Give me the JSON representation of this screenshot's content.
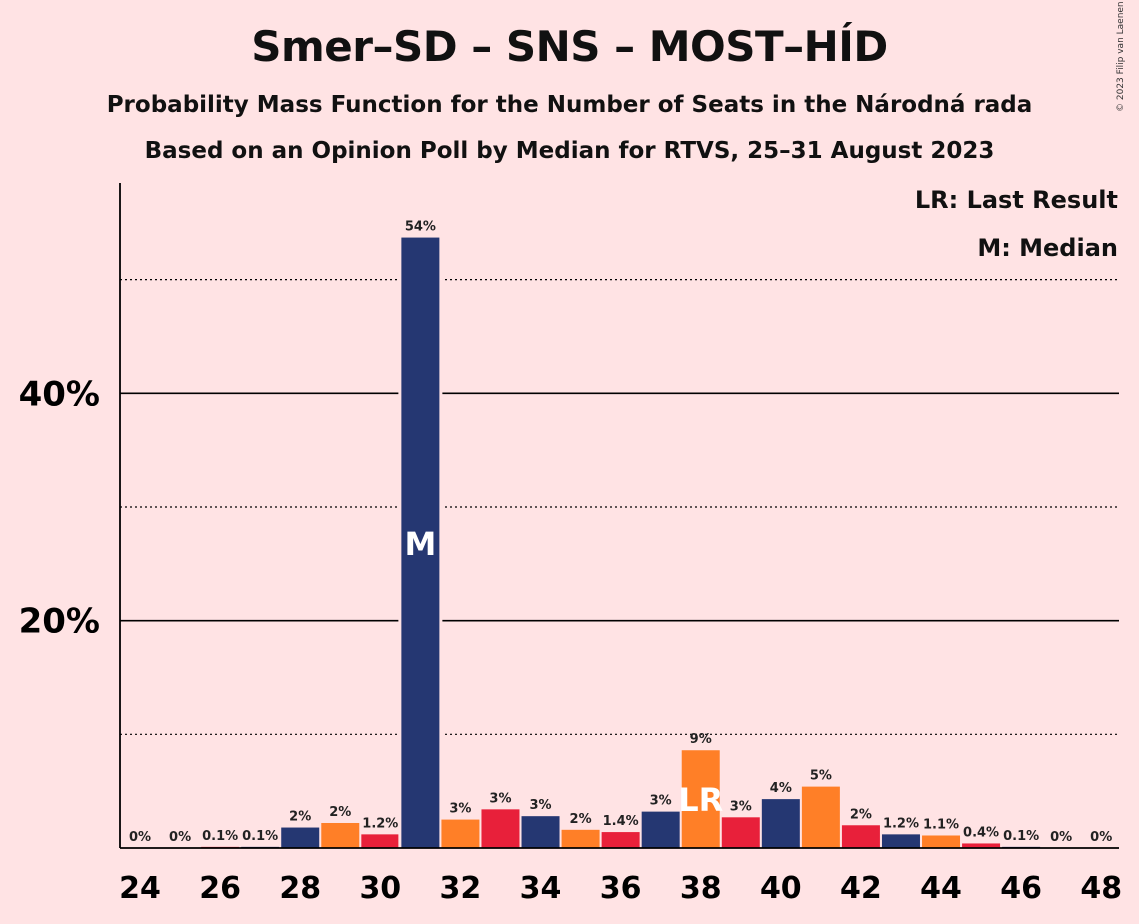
{
  "title": "Smer–SD – SNS – MOST–HÍD",
  "subtitle_1": "Probability Mass Function for the Number of Seats in the Národná rada",
  "subtitle_2": "Based on an Opinion Poll by Median for RTVS, 25–31 August 2023",
  "copyright": "© 2023 Filip van Laenen",
  "legend": {
    "last_result": "LR: Last Result",
    "median": "M: Median"
  },
  "colors": {
    "background": "#FFE3E4",
    "smer": "#253772",
    "sns": "#FF7F27",
    "most": "#E8203A"
  },
  "chart_data": {
    "type": "bar",
    "x": [
      24,
      25,
      26,
      27,
      28,
      29,
      30,
      31,
      32,
      33,
      34,
      35,
      36,
      37,
      38,
      39,
      40,
      41,
      42,
      43,
      44,
      45,
      46,
      47,
      48
    ],
    "values": [
      0,
      0,
      0.1,
      0.1,
      1.8,
      2.2,
      1.2,
      53.7,
      2.5,
      3.4,
      2.8,
      1.6,
      1.4,
      3.2,
      8.6,
      2.7,
      4.3,
      5.4,
      2.0,
      1.2,
      1.1,
      0.4,
      0.1,
      0,
      0
    ],
    "labels": [
      "0%",
      "0%",
      "0.1%",
      "0.1%",
      "2%",
      "2%",
      "1.2%",
      "54%",
      "3%",
      "3%",
      "3%",
      "2%",
      "1.4%",
      "3%",
      "9%",
      "3%",
      "4%",
      "5%",
      "2%",
      "1.2%",
      "1.1%",
      "0.4%",
      "0.1%",
      "0%",
      "0%"
    ],
    "bar_colors": [
      "#253772",
      "#FF7F27",
      "#E8203A",
      "#253772",
      "#253772",
      "#FF7F27",
      "#E8203A",
      "#253772",
      "#FF7F27",
      "#E8203A",
      "#253772",
      "#FF7F27",
      "#E8203A",
      "#253772",
      "#FF7F27",
      "#E8203A",
      "#253772",
      "#FF7F27",
      "#E8203A",
      "#253772",
      "#FF7F27",
      "#E8203A",
      "#253772",
      "#FF7F27",
      "#E8203A"
    ],
    "x_tick_labels": [
      "24",
      "26",
      "28",
      "30",
      "32",
      "34",
      "36",
      "38",
      "40",
      "42",
      "44",
      "46",
      "48"
    ],
    "y_tick_labels": [
      {
        "value": 20,
        "label": "20%"
      },
      {
        "value": 40,
        "label": "40%"
      }
    ],
    "ylim": [
      0,
      58.5
    ],
    "grid_major": [
      20,
      40
    ],
    "grid_minor": [
      10,
      30,
      50
    ],
    "median_seat": 31,
    "median_label": "M",
    "last_result_seat": 38,
    "last_result_label": "LR"
  }
}
